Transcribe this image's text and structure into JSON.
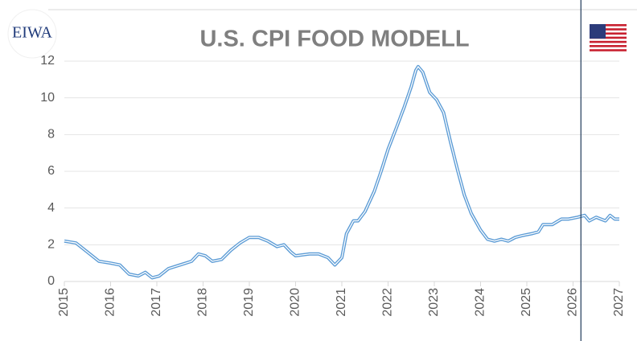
{
  "logo": "EIWA",
  "chart_data": {
    "type": "line",
    "title": "U.S. CPI FOOD MODELL",
    "x": [
      2015.0,
      2015.25,
      2015.5,
      2015.75,
      2016.0,
      2016.2,
      2016.4,
      2016.6,
      2016.75,
      2016.9,
      2017.05,
      2017.25,
      2017.5,
      2017.75,
      2017.9,
      2018.05,
      2018.2,
      2018.4,
      2018.6,
      2018.8,
      2019.0,
      2019.2,
      2019.4,
      2019.6,
      2019.75,
      2019.9,
      2020.0,
      2020.3,
      2020.5,
      2020.7,
      2020.85,
      2021.0,
      2021.1,
      2021.25,
      2021.35,
      2021.5,
      2021.7,
      2021.85,
      2022.0,
      2022.2,
      2022.35,
      2022.5,
      2022.6,
      2022.65,
      2022.75,
      2022.9,
      2023.05,
      2023.2,
      2023.35,
      2023.5,
      2023.65,
      2023.8,
      2024.0,
      2024.15,
      2024.3,
      2024.45,
      2024.6,
      2024.75,
      2024.9,
      2025.1,
      2025.25,
      2025.35,
      2025.55,
      2025.75,
      2025.9,
      2026.1,
      2026.25,
      2026.35,
      2026.5,
      2026.7,
      2026.8,
      2026.9,
      2027.0
    ],
    "series": [
      {
        "color": "#5b9bd5",
        "values": [
          2.2,
          2.1,
          1.6,
          1.1,
          1.0,
          0.9,
          0.4,
          0.3,
          0.5,
          0.2,
          0.3,
          0.7,
          0.9,
          1.1,
          1.5,
          1.4,
          1.1,
          1.2,
          1.7,
          2.1,
          2.4,
          2.4,
          2.2,
          1.9,
          2.0,
          1.6,
          1.4,
          1.5,
          1.5,
          1.3,
          0.9,
          1.3,
          2.6,
          3.3,
          3.3,
          3.8,
          4.9,
          6.0,
          7.2,
          8.5,
          9.5,
          10.6,
          11.5,
          11.7,
          11.4,
          10.3,
          9.9,
          9.2,
          7.6,
          6.1,
          4.7,
          3.7,
          2.8,
          2.3,
          2.2,
          2.3,
          2.2,
          2.4,
          2.5,
          2.6,
          2.7,
          3.1,
          3.1,
          3.4,
          3.4,
          3.5,
          3.6,
          3.3,
          3.5,
          3.3,
          3.6,
          3.4,
          3.4
        ]
      }
    ],
    "xlim": [
      2015,
      2027
    ],
    "xticks": [
      2015,
      2016,
      2017,
      2018,
      2019,
      2020,
      2021,
      2022,
      2023,
      2024,
      2025,
      2026,
      2027
    ],
    "ylim": [
      0,
      12
    ],
    "yticks": [
      0,
      2,
      4,
      6,
      8,
      10,
      12
    ],
    "grid": true,
    "vline_x": 2026.17,
    "vline_color": "#1f3a5a"
  }
}
